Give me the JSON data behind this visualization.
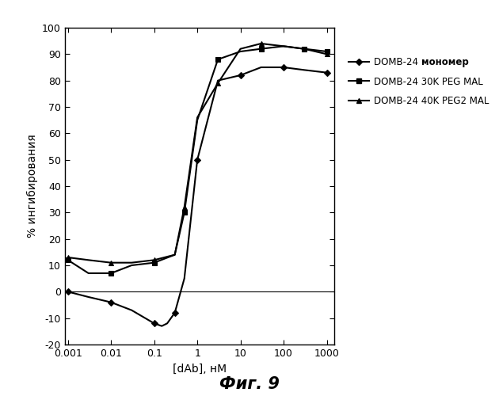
{
  "title": "Фиг. 9",
  "xlabel": "[dAb], нМ",
  "ylabel": "% ингибирования",
  "ylim": [
    -20,
    100
  ],
  "yticks": [
    -20,
    -10,
    0,
    10,
    20,
    30,
    40,
    50,
    60,
    70,
    80,
    90,
    100
  ],
  "xtick_labels": [
    "0.001",
    "0.01",
    "0.1",
    "1",
    "10",
    "100",
    "1000"
  ],
  "xtick_vals": [
    0.001,
    0.01,
    0.1,
    1,
    10,
    100,
    1000
  ],
  "series": [
    {
      "label_normal": "DOMB-24 ",
      "label_bold": "мономер",
      "x": [
        0.001,
        0.003,
        0.01,
        0.03,
        0.1,
        0.15,
        0.2,
        0.3,
        0.5,
        1.0,
        3.0,
        10,
        30,
        100,
        300,
        1000
      ],
      "y": [
        0,
        -2,
        -4,
        -7,
        -12,
        -13,
        -12,
        -8,
        5,
        50,
        80,
        82,
        85,
        85,
        84,
        83
      ],
      "color": "#000000",
      "marker": "D",
      "markersize": 4,
      "markevery": [
        0,
        2,
        4,
        7,
        9,
        11,
        13,
        15
      ]
    },
    {
      "label_normal": "DOMB-24 30K PEG MAL",
      "label_bold": "",
      "x": [
        0.001,
        0.003,
        0.01,
        0.03,
        0.1,
        0.3,
        0.5,
        1.0,
        3.0,
        10,
        30,
        100,
        300,
        1000
      ],
      "y": [
        12,
        7,
        7,
        10,
        11,
        14,
        30,
        65,
        88,
        91,
        92,
        93,
        92,
        91
      ],
      "color": "#000000",
      "marker": "s",
      "markersize": 4,
      "markevery": [
        0,
        2,
        4,
        6,
        8,
        10,
        12,
        13
      ]
    },
    {
      "label_normal": "DOMB-24 40K PEG2 MAL",
      "label_bold": "",
      "x": [
        0.001,
        0.003,
        0.01,
        0.03,
        0.1,
        0.3,
        0.5,
        1.0,
        3.0,
        10,
        30,
        100,
        300,
        1000
      ],
      "y": [
        13,
        12,
        11,
        11,
        12,
        14,
        32,
        66,
        79,
        92,
        94,
        93,
        92,
        90
      ],
      "color": "#000000",
      "marker": "^",
      "markersize": 5,
      "markevery": [
        0,
        2,
        4,
        6,
        8,
        10,
        12,
        13
      ]
    }
  ],
  "background_color": "#ffffff"
}
